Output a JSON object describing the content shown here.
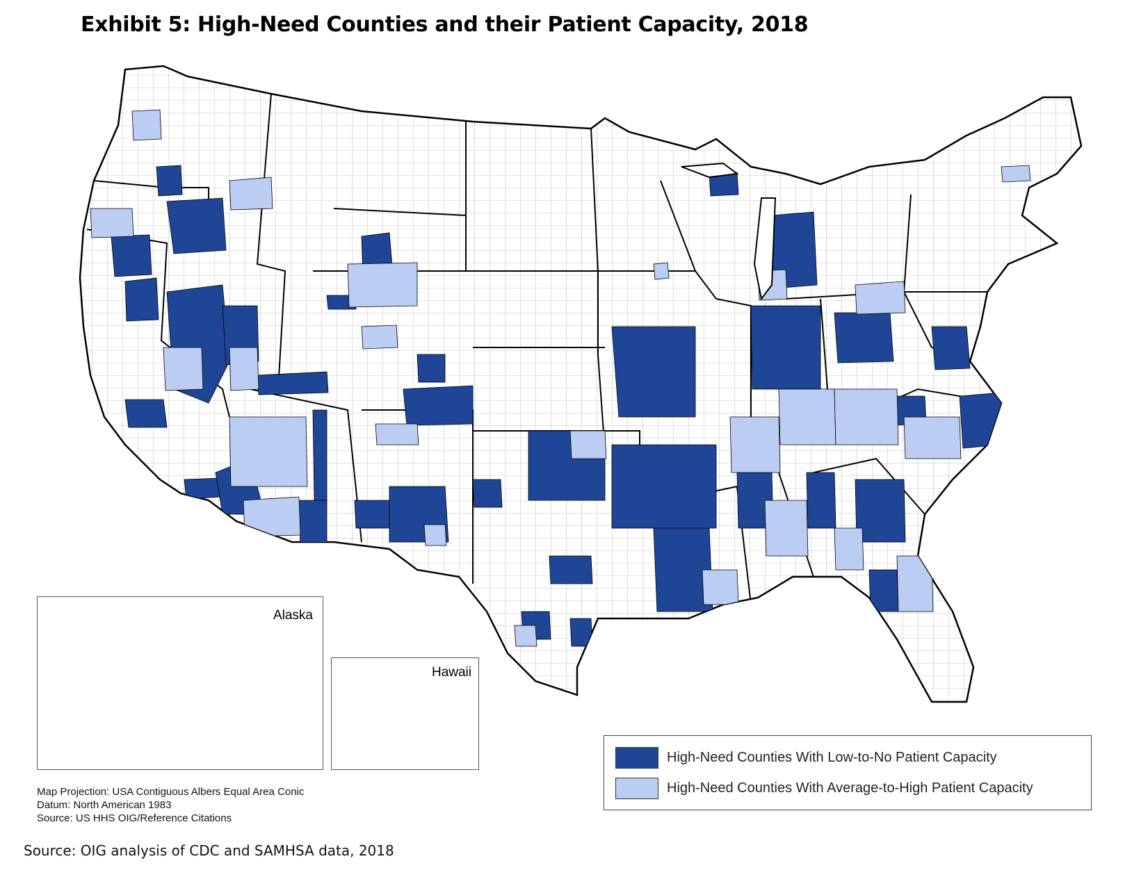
{
  "title": "Exhibit 5: High-Need Counties and their Patient Capacity, 2018",
  "colors": {
    "low_capacity": "#1f4597",
    "high_capacity": "#bccdf4",
    "outline": "#000000"
  },
  "insets": {
    "alaska_label": "Alaska",
    "hawaii_label": "Hawaii"
  },
  "legend": {
    "items": [
      {
        "label": "High-Need Counties With Low-to-No Patient Capacity",
        "color": "#1f4597"
      },
      {
        "label": "High-Need Counties With Average-to-High Patient Capacity",
        "color": "#bccdf4"
      }
    ]
  },
  "notes": {
    "projection": "Map Projection:  USA Contiguous Albers Equal Area Conic",
    "datum": "Datum:  North American 1983",
    "source": "Source:  US HHS OIG/Reference Citations"
  },
  "footer_source": "Source: OIG analysis of CDC and SAMHSA data, 2018"
}
